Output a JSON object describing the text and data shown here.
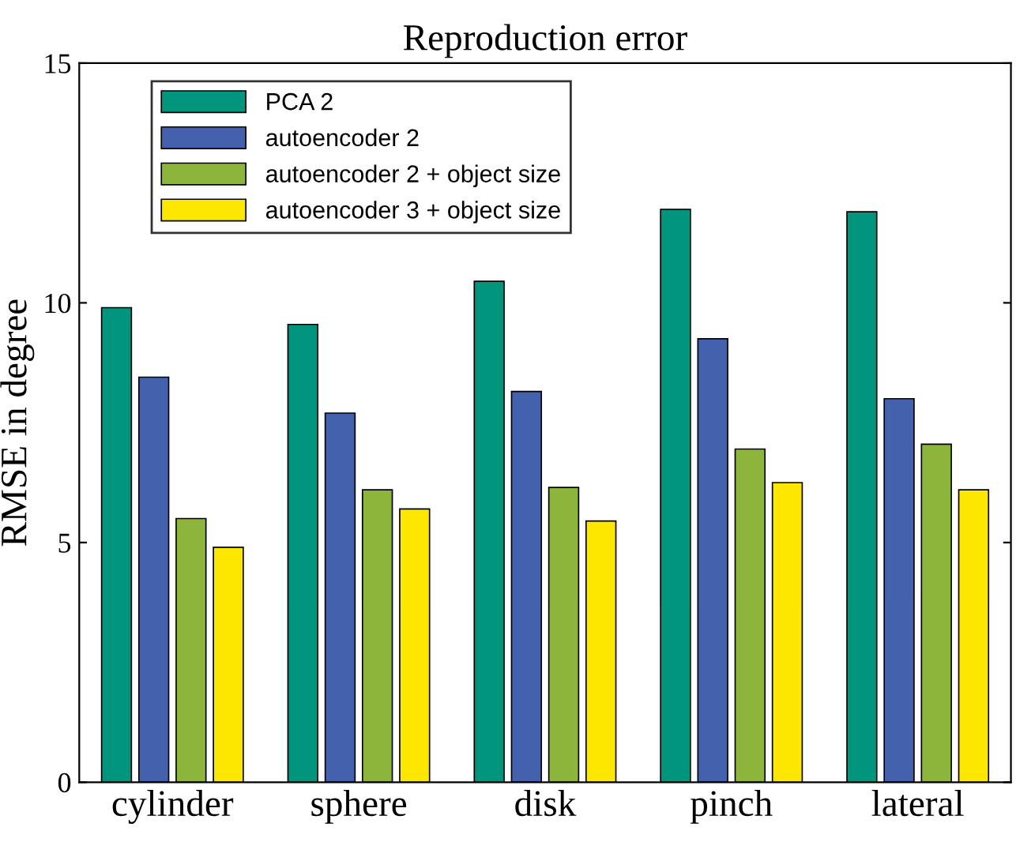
{
  "chart_data": {
    "type": "bar",
    "title": "Reproduction error",
    "ylabel": "RMSE in degree",
    "categories": [
      "cylinder",
      "sphere",
      "disk",
      "pinch",
      "lateral"
    ],
    "series": [
      {
        "name": "PCA 2",
        "color": "#00957c",
        "values": [
          9.9,
          9.55,
          10.45,
          11.95,
          11.9
        ]
      },
      {
        "name": "autoencoder 2",
        "color": "#4361ac",
        "values": [
          8.45,
          7.7,
          8.15,
          9.25,
          8.0
        ]
      },
      {
        "name": "autoencoder 2 + object size",
        "color": "#8db53c",
        "values": [
          5.5,
          6.1,
          6.15,
          6.95,
          7.05
        ]
      },
      {
        "name": "autoencoder 3 + object size",
        "color": "#fde600",
        "values": [
          4.9,
          5.7,
          5.45,
          6.25,
          6.1
        ]
      }
    ],
    "ylim": [
      0,
      15
    ],
    "yticks": [
      0,
      5,
      10,
      15
    ],
    "grid": false,
    "legend": "top left"
  }
}
